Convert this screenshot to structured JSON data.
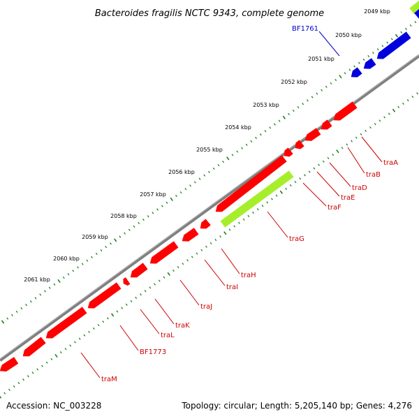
{
  "title": "Bacteroides fragilis NCTC 9343, complete genome",
  "footer": {
    "accession": "Accession: NC_003228",
    "summary": "Topology: circular; Length: 5,205,140 bp; Genes: 4,276"
  },
  "colors": {
    "background": "#ffffff",
    "backbone": "#7f7f7f",
    "tick": "#1f7f1f",
    "gene_red": "#ff0000",
    "gene_blue": "#0000dd",
    "gene_green": "#a6ee2c",
    "label_red": "#cc0000",
    "label_blue": "#0000cc"
  },
  "ticks": [
    {
      "label": "2049 kbp"
    },
    {
      "label": "2050 kbp"
    },
    {
      "label": "2051 kbp"
    },
    {
      "label": "2052 kbp"
    },
    {
      "label": "2053 kbp"
    },
    {
      "label": "2054 kbp"
    },
    {
      "label": "2055 kbp"
    },
    {
      "label": "2056 kbp"
    },
    {
      "label": "2057 kbp"
    },
    {
      "label": "2058 kbp"
    },
    {
      "label": "2059 kbp"
    },
    {
      "label": "2060 kbp"
    },
    {
      "label": "2061 kbp"
    }
  ],
  "labels": [
    {
      "text": "BF1761",
      "color": "blue"
    },
    {
      "text": "traA",
      "color": "red"
    },
    {
      "text": "traB",
      "color": "red"
    },
    {
      "text": "traD",
      "color": "red"
    },
    {
      "text": "traE",
      "color": "red"
    },
    {
      "text": "traF",
      "color": "red"
    },
    {
      "text": "traG",
      "color": "red"
    },
    {
      "text": "traH",
      "color": "red"
    },
    {
      "text": "traI",
      "color": "red"
    },
    {
      "text": "traJ",
      "color": "red"
    },
    {
      "text": "traK",
      "color": "red"
    },
    {
      "text": "traL",
      "color": "red"
    },
    {
      "text": "BF1773",
      "color": "red"
    },
    {
      "text": "traM",
      "color": "red"
    }
  ]
}
